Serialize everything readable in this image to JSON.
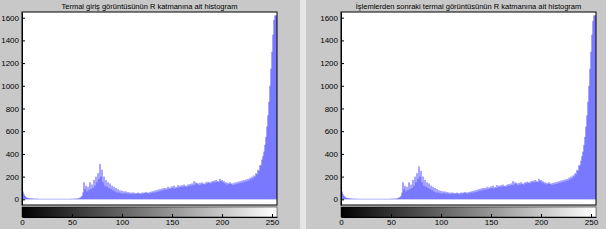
{
  "chart_data": [
    {
      "type": "bar",
      "title": "Termal giriş görüntüsünün R katmanına ait histogram",
      "x": [
        0,
        1,
        2,
        3,
        4,
        5,
        6,
        7,
        8,
        9,
        10,
        11,
        12,
        13,
        14,
        15,
        16,
        17,
        18,
        19,
        20,
        21,
        22,
        23,
        24,
        25,
        26,
        27,
        28,
        29,
        30,
        31,
        32,
        33,
        34,
        35,
        36,
        37,
        38,
        39,
        40,
        41,
        42,
        43,
        44,
        45,
        46,
        47,
        48,
        49,
        50,
        51,
        52,
        53,
        54,
        55,
        56,
        57,
        58,
        59,
        60,
        61,
        62,
        63,
        64,
        65,
        66,
        67,
        68,
        69,
        70,
        71,
        72,
        73,
        74,
        75,
        76,
        77,
        78,
        79,
        80,
        81,
        82,
        83,
        84,
        85,
        86,
        87,
        88,
        89,
        90,
        91,
        92,
        93,
        94,
        95,
        96,
        97,
        98,
        99,
        100,
        101,
        102,
        103,
        104,
        105,
        106,
        107,
        108,
        109,
        110,
        111,
        112,
        113,
        114,
        115,
        116,
        117,
        118,
        119,
        120,
        121,
        122,
        123,
        124,
        125,
        126,
        127,
        128,
        129,
        130,
        131,
        132,
        133,
        134,
        135,
        136,
        137,
        138,
        139,
        140,
        141,
        142,
        143,
        144,
        145,
        146,
        147,
        148,
        149,
        150,
        151,
        152,
        153,
        154,
        155,
        156,
        157,
        158,
        159,
        160,
        161,
        162,
        163,
        164,
        165,
        166,
        167,
        168,
        169,
        170,
        171,
        172,
        173,
        174,
        175,
        176,
        177,
        178,
        179,
        180,
        181,
        182,
        183,
        184,
        185,
        186,
        187,
        188,
        189,
        190,
        191,
        192,
        193,
        194,
        195,
        196,
        197,
        198,
        199,
        200,
        201,
        202,
        203,
        204,
        205,
        206,
        207,
        208,
        209,
        210,
        211,
        212,
        213,
        214,
        215,
        216,
        217,
        218,
        219,
        220,
        221,
        222,
        223,
        224,
        225,
        226,
        227,
        228,
        229,
        230,
        231,
        232,
        233,
        234,
        235,
        236,
        237,
        238,
        239,
        240,
        241,
        242,
        243,
        244,
        245,
        246,
        247,
        248,
        249,
        250,
        251,
        252,
        253,
        254,
        255
      ],
      "values": [
        110,
        70,
        45,
        30,
        20,
        15,
        12,
        10,
        8,
        8,
        7,
        6,
        6,
        5,
        5,
        5,
        5,
        4,
        4,
        4,
        4,
        4,
        4,
        4,
        4,
        4,
        4,
        4,
        4,
        4,
        4,
        4,
        4,
        4,
        4,
        4,
        4,
        4,
        4,
        4,
        4,
        4,
        4,
        4,
        4,
        4,
        4,
        4,
        4,
        5,
        5,
        5,
        5,
        6,
        6,
        6,
        8,
        10,
        15,
        20,
        30,
        60,
        150,
        90,
        120,
        70,
        110,
        80,
        150,
        90,
        130,
        100,
        170,
        120,
        200,
        150,
        230,
        180,
        310,
        200,
        260,
        150,
        200,
        120,
        170,
        110,
        150,
        100,
        140,
        90,
        120,
        80,
        110,
        70,
        100,
        60,
        90,
        60,
        80,
        55,
        75,
        50,
        70,
        55,
        70,
        50,
        65,
        50,
        60,
        45,
        60,
        50,
        60,
        45,
        55,
        50,
        60,
        50,
        55,
        45,
        60,
        50,
        60,
        55,
        65,
        55,
        60,
        50,
        65,
        55,
        70,
        60,
        75,
        60,
        80,
        65,
        85,
        70,
        90,
        75,
        95,
        80,
        100,
        85,
        100,
        85,
        110,
        90,
        105,
        95,
        115,
        100,
        120,
        95,
        110,
        100,
        125,
        105,
        120,
        110,
        125,
        110,
        130,
        115,
        120,
        110,
        130,
        120,
        135,
        120,
        140,
        125,
        160,
        130,
        150,
        140,
        140,
        125,
        145,
        130,
        150,
        135,
        140,
        130,
        150,
        140,
        155,
        145,
        150,
        140,
        160,
        150,
        165,
        150,
        170,
        155,
        160,
        150,
        180,
        160,
        170,
        150,
        160,
        140,
        150,
        130,
        145,
        135,
        150,
        135,
        140,
        125,
        145,
        130,
        150,
        135,
        155,
        140,
        160,
        145,
        165,
        150,
        170,
        155,
        175,
        160,
        180,
        165,
        190,
        175,
        200,
        185,
        210,
        200,
        230,
        220,
        260,
        250,
        300,
        300,
        350,
        380,
        420,
        480,
        550,
        640,
        740,
        860,
        1000,
        1150,
        1300,
        1450,
        1580,
        1620,
        1620,
        1620
      ],
      "color": "#4d4dff",
      "xlim": [
        0,
        255
      ],
      "xticks": [
        0,
        50,
        100,
        150,
        200,
        250
      ],
      "ylim": [
        -50,
        1650
      ],
      "yticks": [
        0,
        200,
        400,
        600,
        800,
        1000,
        1200,
        1400,
        1600
      ],
      "grid": false
    },
    {
      "type": "bar",
      "title": "İşlemlerden sonraki termal görüntüsünün R katmanına ait histogram",
      "x": [
        0,
        1,
        2,
        3,
        4,
        5,
        6,
        7,
        8,
        9,
        10,
        11,
        12,
        13,
        14,
        15,
        16,
        17,
        18,
        19,
        20,
        21,
        22,
        23,
        24,
        25,
        26,
        27,
        28,
        29,
        30,
        31,
        32,
        33,
        34,
        35,
        36,
        37,
        38,
        39,
        40,
        41,
        42,
        43,
        44,
        45,
        46,
        47,
        48,
        49,
        50,
        51,
        52,
        53,
        54,
        55,
        56,
        57,
        58,
        59,
        60,
        61,
        62,
        63,
        64,
        65,
        66,
        67,
        68,
        69,
        70,
        71,
        72,
        73,
        74,
        75,
        76,
        77,
        78,
        79,
        80,
        81,
        82,
        83,
        84,
        85,
        86,
        87,
        88,
        89,
        90,
        91,
        92,
        93,
        94,
        95,
        96,
        97,
        98,
        99,
        100,
        101,
        102,
        103,
        104,
        105,
        106,
        107,
        108,
        109,
        110,
        111,
        112,
        113,
        114,
        115,
        116,
        117,
        118,
        119,
        120,
        121,
        122,
        123,
        124,
        125,
        126,
        127,
        128,
        129,
        130,
        131,
        132,
        133,
        134,
        135,
        136,
        137,
        138,
        139,
        140,
        141,
        142,
        143,
        144,
        145,
        146,
        147,
        148,
        149,
        150,
        151,
        152,
        153,
        154,
        155,
        156,
        157,
        158,
        159,
        160,
        161,
        162,
        163,
        164,
        165,
        166,
        167,
        168,
        169,
        170,
        171,
        172,
        173,
        174,
        175,
        176,
        177,
        178,
        179,
        180,
        181,
        182,
        183,
        184,
        185,
        186,
        187,
        188,
        189,
        190,
        191,
        192,
        193,
        194,
        195,
        196,
        197,
        198,
        199,
        200,
        201,
        202,
        203,
        204,
        205,
        206,
        207,
        208,
        209,
        210,
        211,
        212,
        213,
        214,
        215,
        216,
        217,
        218,
        219,
        220,
        221,
        222,
        223,
        224,
        225,
        226,
        227,
        228,
        229,
        230,
        231,
        232,
        233,
        234,
        235,
        236,
        237,
        238,
        239,
        240,
        241,
        242,
        243,
        244,
        245,
        246,
        247,
        248,
        249,
        250,
        251,
        252,
        253,
        254,
        255
      ],
      "values": [
        110,
        70,
        45,
        30,
        20,
        15,
        12,
        10,
        8,
        8,
        7,
        6,
        6,
        5,
        5,
        5,
        5,
        4,
        4,
        4,
        4,
        4,
        4,
        4,
        4,
        4,
        4,
        4,
        4,
        4,
        4,
        4,
        4,
        4,
        4,
        4,
        4,
        4,
        4,
        4,
        4,
        4,
        4,
        4,
        4,
        4,
        4,
        4,
        4,
        5,
        5,
        5,
        5,
        6,
        6,
        6,
        8,
        10,
        15,
        20,
        30,
        60,
        150,
        90,
        120,
        70,
        110,
        80,
        150,
        90,
        130,
        100,
        170,
        120,
        200,
        150,
        230,
        180,
        290,
        200,
        250,
        150,
        200,
        120,
        170,
        110,
        150,
        100,
        140,
        90,
        120,
        80,
        110,
        70,
        100,
        60,
        90,
        60,
        80,
        55,
        75,
        50,
        70,
        55,
        70,
        50,
        65,
        50,
        60,
        45,
        60,
        50,
        60,
        45,
        55,
        50,
        60,
        50,
        55,
        45,
        60,
        50,
        60,
        55,
        65,
        55,
        60,
        50,
        65,
        55,
        70,
        60,
        75,
        60,
        80,
        65,
        85,
        70,
        90,
        75,
        95,
        80,
        100,
        85,
        100,
        85,
        110,
        90,
        105,
        95,
        115,
        100,
        120,
        95,
        110,
        100,
        125,
        105,
        120,
        110,
        125,
        110,
        130,
        115,
        120,
        110,
        130,
        120,
        135,
        120,
        140,
        125,
        160,
        130,
        150,
        140,
        140,
        125,
        145,
        130,
        150,
        135,
        140,
        130,
        150,
        140,
        155,
        145,
        150,
        140,
        160,
        150,
        165,
        150,
        170,
        155,
        160,
        150,
        180,
        160,
        170,
        150,
        160,
        140,
        150,
        130,
        145,
        135,
        150,
        135,
        140,
        125,
        145,
        130,
        150,
        135,
        155,
        140,
        160,
        145,
        165,
        150,
        170,
        155,
        175,
        160,
        180,
        165,
        190,
        175,
        200,
        185,
        210,
        200,
        230,
        220,
        260,
        250,
        300,
        300,
        340,
        380,
        420,
        480,
        550,
        640,
        740,
        860,
        1000,
        1150,
        1300,
        1450,
        1570,
        1620,
        1620,
        1620
      ],
      "color": "#4d4dff",
      "xlim": [
        0,
        255
      ],
      "xticks": [
        0,
        50,
        100,
        150,
        200,
        250
      ],
      "ylim": [
        -50,
        1650
      ],
      "yticks": [
        0,
        200,
        400,
        600,
        800,
        1000,
        1200,
        1400,
        1600
      ],
      "grid": false
    }
  ]
}
